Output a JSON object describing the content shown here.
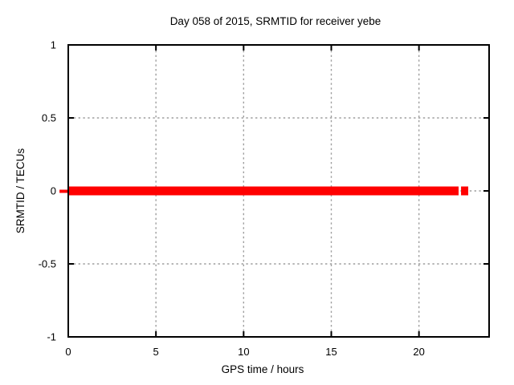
{
  "chart_data": {
    "type": "line",
    "title": "Day 058 of 2015, SRMTID for receiver yebe",
    "xlabel": "GPS time / hours",
    "ylabel": "SRMTID / TECUs",
    "xlim": [
      0,
      24
    ],
    "ylim": [
      -1,
      1
    ],
    "xticks": [
      {
        "value": 0,
        "label": "0"
      },
      {
        "value": 5,
        "label": "5"
      },
      {
        "value": 10,
        "label": "10"
      },
      {
        "value": 15,
        "label": "15"
      },
      {
        "value": 20,
        "label": "20"
      }
    ],
    "yticks": [
      {
        "value": -1,
        "label": "-1"
      },
      {
        "value": -0.5,
        "label": "-0.5"
      },
      {
        "value": 0,
        "label": "0"
      },
      {
        "value": 0.5,
        "label": "0.5"
      },
      {
        "value": 1,
        "label": "1"
      }
    ],
    "grid": true,
    "legend_position": "none",
    "series": [
      {
        "name": "SRMTID",
        "color": "#ff0000",
        "y_value": 0,
        "x_segments_hours": [
          [
            0,
            22.26
          ],
          [
            22.4,
            22.81
          ]
        ],
        "band_thickness_px": 11,
        "pre_axis_cap_hours": [
          -0.5,
          0
        ],
        "pre_axis_cap_thickness_px": 4
      }
    ],
    "colors": {
      "grid": "#9e9e9e",
      "frame": "#000000",
      "text": "#000000",
      "background": "#ffffff"
    }
  }
}
